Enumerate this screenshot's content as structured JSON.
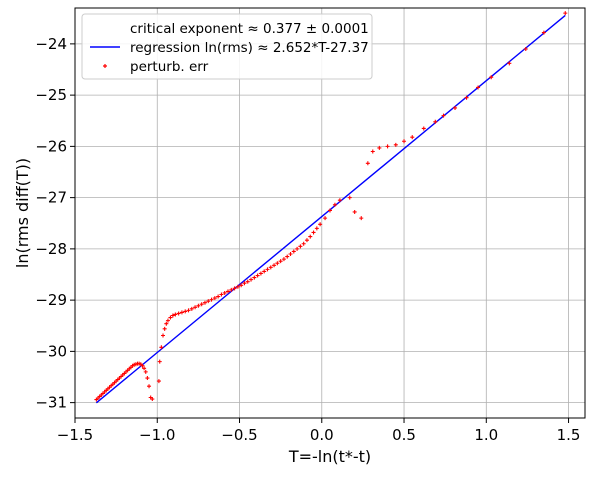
{
  "chart_data": {
    "type": "scatter",
    "title": "",
    "xlabel": "T=-ln(t*-t)",
    "ylabel": "ln(rms diff(T))",
    "xlim": [
      -1.5,
      1.6
    ],
    "ylim": [
      -31.3,
      -23.3
    ],
    "xticks": [
      -1.5,
      -1.0,
      -0.5,
      0.0,
      0.5,
      1.0,
      1.5
    ],
    "xtick_labels": [
      "−1.5",
      "−1.0",
      "−0.5",
      "0.0",
      "0.5",
      "1.0",
      "1.5"
    ],
    "yticks": [
      -31,
      -30,
      -29,
      -28,
      -27,
      -26,
      -25,
      -24
    ],
    "ytick_labels": [
      "−31",
      "−30",
      "−29",
      "−28",
      "−27",
      "−26",
      "−25",
      "−24"
    ],
    "grid": true,
    "legend_position": "top-left",
    "legend": [
      {
        "label": "critical exponent ≈ 0.377 ± 0.0001",
        "marker": "none"
      },
      {
        "label": "regression ln(rms) ≈ 2.652*T-27.37",
        "marker": "line"
      },
      {
        "label": "perturb. err",
        "marker": "plus"
      }
    ],
    "regression": {
      "slope": 2.652,
      "intercept": -27.37,
      "x_range": [
        -1.37,
        1.48
      ],
      "color": "#0000ff"
    },
    "series": [
      {
        "name": "perturb. err",
        "color": "#ff0000",
        "points": [
          [
            -1.37,
            -30.94
          ],
          [
            -1.36,
            -30.91
          ],
          [
            -1.35,
            -30.88
          ],
          [
            -1.34,
            -30.85
          ],
          [
            -1.33,
            -30.82
          ],
          [
            -1.32,
            -30.79
          ],
          [
            -1.31,
            -30.76
          ],
          [
            -1.3,
            -30.73
          ],
          [
            -1.29,
            -30.7
          ],
          [
            -1.28,
            -30.67
          ],
          [
            -1.27,
            -30.64
          ],
          [
            -1.26,
            -30.61
          ],
          [
            -1.25,
            -30.58
          ],
          [
            -1.24,
            -30.55
          ],
          [
            -1.23,
            -30.52
          ],
          [
            -1.22,
            -30.49
          ],
          [
            -1.21,
            -30.46
          ],
          [
            -1.2,
            -30.43
          ],
          [
            -1.19,
            -30.4
          ],
          [
            -1.18,
            -30.37
          ],
          [
            -1.17,
            -30.34
          ],
          [
            -1.16,
            -30.31
          ],
          [
            -1.15,
            -30.28
          ],
          [
            -1.14,
            -30.26
          ],
          [
            -1.13,
            -30.25
          ],
          [
            -1.12,
            -30.24
          ],
          [
            -1.11,
            -30.24
          ],
          [
            -1.1,
            -30.25
          ],
          [
            -1.09,
            -30.28
          ],
          [
            -1.08,
            -30.33
          ],
          [
            -1.07,
            -30.4
          ],
          [
            -1.06,
            -30.52
          ],
          [
            -1.05,
            -30.68
          ],
          [
            -1.04,
            -30.9
          ],
          [
            -1.03,
            -30.93
          ],
          [
            -0.99,
            -30.58
          ],
          [
            -0.985,
            -30.2
          ],
          [
            -0.975,
            -29.92
          ],
          [
            -0.965,
            -29.69
          ],
          [
            -0.955,
            -29.56
          ],
          [
            -0.945,
            -29.46
          ],
          [
            -0.935,
            -29.4
          ],
          [
            -0.92,
            -29.34
          ],
          [
            -0.905,
            -29.3
          ],
          [
            -0.89,
            -29.28
          ],
          [
            -0.87,
            -29.26
          ],
          [
            -0.85,
            -29.24
          ],
          [
            -0.83,
            -29.22
          ],
          [
            -0.81,
            -29.2
          ],
          [
            -0.79,
            -29.17
          ],
          [
            -0.77,
            -29.14
          ],
          [
            -0.75,
            -29.11
          ],
          [
            -0.73,
            -29.08
          ],
          [
            -0.71,
            -29.05
          ],
          [
            -0.69,
            -29.02
          ],
          [
            -0.67,
            -28.99
          ],
          [
            -0.65,
            -28.96
          ],
          [
            -0.63,
            -28.93
          ],
          [
            -0.61,
            -28.89
          ],
          [
            -0.59,
            -28.86
          ],
          [
            -0.57,
            -28.83
          ],
          [
            -0.55,
            -28.8
          ],
          [
            -0.53,
            -28.77
          ],
          [
            -0.51,
            -28.74
          ],
          [
            -0.49,
            -28.71
          ],
          [
            -0.47,
            -28.67
          ],
          [
            -0.45,
            -28.64
          ],
          [
            -0.43,
            -28.6
          ],
          [
            -0.41,
            -28.56
          ],
          [
            -0.39,
            -28.52
          ],
          [
            -0.37,
            -28.48
          ],
          [
            -0.35,
            -28.44
          ],
          [
            -0.33,
            -28.4
          ],
          [
            -0.31,
            -28.36
          ],
          [
            -0.29,
            -28.32
          ],
          [
            -0.27,
            -28.28
          ],
          [
            -0.25,
            -28.24
          ],
          [
            -0.23,
            -28.2
          ],
          [
            -0.21,
            -28.15
          ],
          [
            -0.19,
            -28.1
          ],
          [
            -0.17,
            -28.05
          ],
          [
            -0.15,
            -28.0
          ],
          [
            -0.13,
            -27.95
          ],
          [
            -0.11,
            -27.9
          ],
          [
            -0.09,
            -27.83
          ],
          [
            -0.07,
            -27.76
          ],
          [
            -0.05,
            -27.68
          ],
          [
            -0.03,
            -27.6
          ],
          [
            -0.01,
            -27.52
          ],
          [
            0.02,
            -27.4
          ],
          [
            0.05,
            -27.25
          ],
          [
            0.08,
            -27.14
          ],
          [
            0.11,
            -27.05
          ],
          [
            0.17,
            -27.0
          ],
          [
            0.2,
            -27.28
          ],
          [
            0.24,
            -27.4
          ],
          [
            0.28,
            -26.33
          ],
          [
            0.31,
            -26.1
          ],
          [
            0.35,
            -26.03
          ],
          [
            0.4,
            -26.0
          ],
          [
            0.45,
            -25.97
          ],
          [
            0.5,
            -25.9
          ],
          [
            0.55,
            -25.82
          ],
          [
            0.62,
            -25.65
          ],
          [
            0.69,
            -25.52
          ],
          [
            0.74,
            -25.4
          ],
          [
            0.81,
            -25.25
          ],
          [
            0.88,
            -25.05
          ],
          [
            0.95,
            -24.85
          ],
          [
            1.03,
            -24.65
          ],
          [
            1.14,
            -24.38
          ],
          [
            1.24,
            -24.1
          ],
          [
            1.35,
            -23.78
          ],
          [
            1.48,
            -23.4
          ]
        ]
      }
    ]
  }
}
